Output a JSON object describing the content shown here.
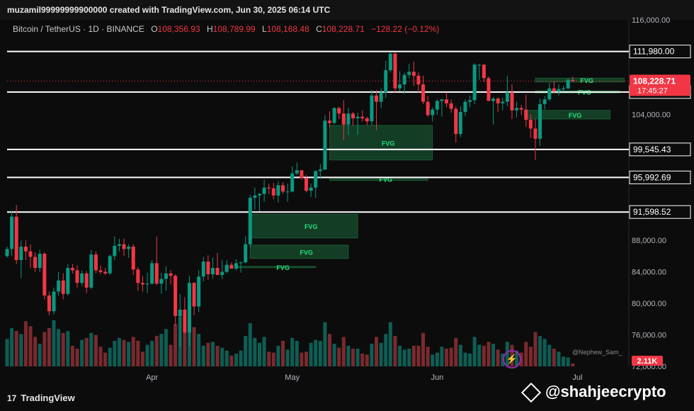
{
  "credit": "muzamil99999999900000 created with TradingView.com, Jun 30, 2025 06:14 UTC",
  "symbol": {
    "name": "Bitcoin / TetherUS · 1D · BINANCE",
    "o_label": "O",
    "o": "108,356.93",
    "h_label": "H",
    "h": "108,789.99",
    "l_label": "L",
    "l": "108,168.48",
    "c_label": "C",
    "c": "108,228.71",
    "change": "−128.22 (−0.12%)"
  },
  "brand": "TradingView",
  "author": "@Nephew_Sam_",
  "watermark": "@shahjeecrypto",
  "colors": {
    "up": "#089981",
    "down": "#f23645",
    "fvg": "#1f7a45",
    "fvg_text": "#26e07a",
    "level": "#ffffff",
    "bg": "#0c0c0c"
  },
  "chart_data": {
    "type": "candlestick",
    "title": "Bitcoin / TetherUS · 1D · BINANCE",
    "y_scale": "linear",
    "ylim": [
      72000,
      116000
    ],
    "y_ticks": [
      "116,000.00",
      "104,000.00",
      "88,000.00",
      "84,000.00",
      "80,000.00",
      "76,000.00",
      "72,000.00"
    ],
    "x_ticks": [
      "Apr",
      "May",
      "Jun",
      "Jul"
    ],
    "x_tick_dates": [
      "2025-04-01",
      "2025-05-01",
      "2025-06-01",
      "2025-07-01"
    ],
    "x_range": [
      "2025-03-01",
      "2025-07-12"
    ],
    "levels": [
      {
        "price": 111980.0,
        "label": "111,980.00"
      },
      {
        "price": 106837.88,
        "label": "106,837.88"
      },
      {
        "price": 99545.43,
        "label": "99,545.43"
      },
      {
        "price": 95992.69,
        "label": "95,992.69"
      },
      {
        "price": 91598.52,
        "label": "91,598.52"
      }
    ],
    "last_price": {
      "price": 108228.71,
      "label": "108,228.71",
      "countdown": "17:45:27"
    },
    "volume_label": "2.11K",
    "fvg_zones": [
      {
        "label": "FVG",
        "start": "2025-06-22",
        "end": "2025-07-11",
        "top": 108600,
        "bottom": 108100
      },
      {
        "label": "FVG",
        "start": "2025-06-22",
        "end": "2025-07-10",
        "top": 107000,
        "bottom": 106700
      },
      {
        "label": "FVG",
        "start": "2025-06-20",
        "end": "2025-07-08",
        "top": 104500,
        "bottom": 103400
      },
      {
        "label": "FVG",
        "start": "2025-05-09",
        "end": "2025-05-31",
        "top": 102600,
        "bottom": 98200
      },
      {
        "label": "FVG",
        "start": "2025-05-09",
        "end": "2025-05-30",
        "top": 96000,
        "bottom": 95600
      },
      {
        "label": "FVG",
        "start": "2025-04-22",
        "end": "2025-05-15",
        "top": 91300,
        "bottom": 88300
      },
      {
        "label": "FVG",
        "start": "2025-04-22",
        "end": "2025-05-13",
        "top": 87400,
        "bottom": 85700
      },
      {
        "label": "FVG",
        "start": "2025-04-19",
        "end": "2025-05-06",
        "top": 84700,
        "bottom": 84600
      }
    ],
    "candles": [
      {
        "d": "2025-03-01",
        "o": 86000,
        "h": 87200,
        "l": 85800,
        "c": 86900
      },
      {
        "d": "2025-03-02",
        "o": 86900,
        "h": 91800,
        "l": 86000,
        "c": 91000
      },
      {
        "d": "2025-03-03",
        "o": 91000,
        "h": 92500,
        "l": 85000,
        "c": 85500
      },
      {
        "d": "2025-03-04",
        "o": 85500,
        "h": 88000,
        "l": 83200,
        "c": 87200
      },
      {
        "d": "2025-03-05",
        "o": 87200,
        "h": 88000,
        "l": 85500,
        "c": 86600
      },
      {
        "d": "2025-03-06",
        "o": 86600,
        "h": 87500,
        "l": 84500,
        "c": 85900
      },
      {
        "d": "2025-03-07",
        "o": 85900,
        "h": 86500,
        "l": 84000,
        "c": 84500
      },
      {
        "d": "2025-03-08",
        "o": 84500,
        "h": 86800,
        "l": 84000,
        "c": 86300
      },
      {
        "d": "2025-03-09",
        "o": 86300,
        "h": 86500,
        "l": 80500,
        "c": 81000
      },
      {
        "d": "2025-03-10",
        "o": 81000,
        "h": 81500,
        "l": 78500,
        "c": 79000
      },
      {
        "d": "2025-03-11",
        "o": 79000,
        "h": 82000,
        "l": 78600,
        "c": 81500
      },
      {
        "d": "2025-03-12",
        "o": 81500,
        "h": 84000,
        "l": 81000,
        "c": 82900
      },
      {
        "d": "2025-03-13",
        "o": 82900,
        "h": 83800,
        "l": 80500,
        "c": 81200
      },
      {
        "d": "2025-03-14",
        "o": 81200,
        "h": 85000,
        "l": 81000,
        "c": 84500
      },
      {
        "d": "2025-03-15",
        "o": 84500,
        "h": 85000,
        "l": 83800,
        "c": 84200
      },
      {
        "d": "2025-03-16",
        "o": 84200,
        "h": 84800,
        "l": 82000,
        "c": 82600
      },
      {
        "d": "2025-03-17",
        "o": 82600,
        "h": 84200,
        "l": 82200,
        "c": 83800
      },
      {
        "d": "2025-03-18",
        "o": 83800,
        "h": 84100,
        "l": 81300,
        "c": 82000
      },
      {
        "d": "2025-03-19",
        "o": 82000,
        "h": 86800,
        "l": 81800,
        "c": 86200
      },
      {
        "d": "2025-03-20",
        "o": 86200,
        "h": 86600,
        "l": 83800,
        "c": 84200
      },
      {
        "d": "2025-03-21",
        "o": 84200,
        "h": 84800,
        "l": 83700,
        "c": 84000
      },
      {
        "d": "2025-03-22",
        "o": 84000,
        "h": 84500,
        "l": 83600,
        "c": 83800
      },
      {
        "d": "2025-03-23",
        "o": 83800,
        "h": 86200,
        "l": 83600,
        "c": 86000
      },
      {
        "d": "2025-03-24",
        "o": 86000,
        "h": 88500,
        "l": 85500,
        "c": 87300
      },
      {
        "d": "2025-03-25",
        "o": 87300,
        "h": 88200,
        "l": 86600,
        "c": 87500
      },
      {
        "d": "2025-03-26",
        "o": 87500,
        "h": 88200,
        "l": 86000,
        "c": 86900
      },
      {
        "d": "2025-03-27",
        "o": 86900,
        "h": 87500,
        "l": 85800,
        "c": 87200
      },
      {
        "d": "2025-03-28",
        "o": 87200,
        "h": 87500,
        "l": 83600,
        "c": 84300
      },
      {
        "d": "2025-03-29",
        "o": 84300,
        "h": 84600,
        "l": 81600,
        "c": 82600
      },
      {
        "d": "2025-03-30",
        "o": 82600,
        "h": 83500,
        "l": 81500,
        "c": 82400
      },
      {
        "d": "2025-03-31",
        "o": 82400,
        "h": 83900,
        "l": 81300,
        "c": 82500
      },
      {
        "d": "2025-04-01",
        "o": 82500,
        "h": 85500,
        "l": 82400,
        "c": 85100
      },
      {
        "d": "2025-04-02",
        "o": 85100,
        "h": 88500,
        "l": 82300,
        "c": 82500
      },
      {
        "d": "2025-04-03",
        "o": 82500,
        "h": 83900,
        "l": 81200,
        "c": 83100
      },
      {
        "d": "2025-04-04",
        "o": 83100,
        "h": 84700,
        "l": 81600,
        "c": 83800
      },
      {
        "d": "2025-04-05",
        "o": 83800,
        "h": 84200,
        "l": 82400,
        "c": 83500
      },
      {
        "d": "2025-04-06",
        "o": 83500,
        "h": 83700,
        "l": 77200,
        "c": 78400
      },
      {
        "d": "2025-04-07",
        "o": 78400,
        "h": 81200,
        "l": 74500,
        "c": 79200
      },
      {
        "d": "2025-04-08",
        "o": 79200,
        "h": 80800,
        "l": 76200,
        "c": 76300
      },
      {
        "d": "2025-04-09",
        "o": 76300,
        "h": 83500,
        "l": 74600,
        "c": 82600
      },
      {
        "d": "2025-04-10",
        "o": 82600,
        "h": 82700,
        "l": 78500,
        "c": 79600
      },
      {
        "d": "2025-04-11",
        "o": 79600,
        "h": 84200,
        "l": 78900,
        "c": 83400
      },
      {
        "d": "2025-04-12",
        "o": 83400,
        "h": 85900,
        "l": 82800,
        "c": 85300
      },
      {
        "d": "2025-04-13",
        "o": 85300,
        "h": 86100,
        "l": 83000,
        "c": 83700
      },
      {
        "d": "2025-04-14",
        "o": 83700,
        "h": 85800,
        "l": 83100,
        "c": 84500
      },
      {
        "d": "2025-04-15",
        "o": 84500,
        "h": 86400,
        "l": 83600,
        "c": 83600
      },
      {
        "d": "2025-04-16",
        "o": 83600,
        "h": 85500,
        "l": 83100,
        "c": 84000
      },
      {
        "d": "2025-04-17",
        "o": 84000,
        "h": 85500,
        "l": 83800,
        "c": 84900
      },
      {
        "d": "2025-04-18",
        "o": 84900,
        "h": 85200,
        "l": 84500,
        "c": 84400
      },
      {
        "d": "2025-04-19",
        "o": 84400,
        "h": 85600,
        "l": 84200,
        "c": 85100
      },
      {
        "d": "2025-04-20",
        "o": 85100,
        "h": 85300,
        "l": 83900,
        "c": 85200
      },
      {
        "d": "2025-04-21",
        "o": 85200,
        "h": 88500,
        "l": 85100,
        "c": 87500
      },
      {
        "d": "2025-04-22",
        "o": 87500,
        "h": 93800,
        "l": 87100,
        "c": 93400
      },
      {
        "d": "2025-04-23",
        "o": 93400,
        "h": 94700,
        "l": 91900,
        "c": 93700
      },
      {
        "d": "2025-04-24",
        "o": 93700,
        "h": 94000,
        "l": 91700,
        "c": 93900
      },
      {
        "d": "2025-04-25",
        "o": 93900,
        "h": 95700,
        "l": 92900,
        "c": 94700
      },
      {
        "d": "2025-04-26",
        "o": 94700,
        "h": 95200,
        "l": 93900,
        "c": 94600
      },
      {
        "d": "2025-04-27",
        "o": 94600,
        "h": 95300,
        "l": 93200,
        "c": 93700
      },
      {
        "d": "2025-04-28",
        "o": 93700,
        "h": 95500,
        "l": 92800,
        "c": 95000
      },
      {
        "d": "2025-04-29",
        "o": 95000,
        "h": 95400,
        "l": 93900,
        "c": 94200
      },
      {
        "d": "2025-04-30",
        "o": 94200,
        "h": 95200,
        "l": 92900,
        "c": 94200
      },
      {
        "d": "2025-05-01",
        "o": 94200,
        "h": 97400,
        "l": 94100,
        "c": 96500
      },
      {
        "d": "2025-05-02",
        "o": 96500,
        "h": 97900,
        "l": 96300,
        "c": 96900
      },
      {
        "d": "2025-05-03",
        "o": 96900,
        "h": 96900,
        "l": 95700,
        "c": 95900
      },
      {
        "d": "2025-05-04",
        "o": 95900,
        "h": 96300,
        "l": 94100,
        "c": 94300
      },
      {
        "d": "2025-05-05",
        "o": 94300,
        "h": 95200,
        "l": 93500,
        "c": 94700
      },
      {
        "d": "2025-05-06",
        "o": 94700,
        "h": 96900,
        "l": 93400,
        "c": 96800
      },
      {
        "d": "2025-05-07",
        "o": 96800,
        "h": 97700,
        "l": 95800,
        "c": 97000
      },
      {
        "d": "2025-05-08",
        "o": 97000,
        "h": 103900,
        "l": 96900,
        "c": 103200
      },
      {
        "d": "2025-05-09",
        "o": 103200,
        "h": 104400,
        "l": 102300,
        "c": 102900
      },
      {
        "d": "2025-05-10",
        "o": 102900,
        "h": 104900,
        "l": 102800,
        "c": 104800
      },
      {
        "d": "2025-05-11",
        "o": 104800,
        "h": 105000,
        "l": 103400,
        "c": 104100
      },
      {
        "d": "2025-05-12",
        "o": 104100,
        "h": 105800,
        "l": 100700,
        "c": 102700
      },
      {
        "d": "2025-05-13",
        "o": 102700,
        "h": 104800,
        "l": 101400,
        "c": 104100
      },
      {
        "d": "2025-05-14",
        "o": 104100,
        "h": 104300,
        "l": 102600,
        "c": 103500
      },
      {
        "d": "2025-05-15",
        "o": 103500,
        "h": 104200,
        "l": 101400,
        "c": 103700
      },
      {
        "d": "2025-05-16",
        "o": 103700,
        "h": 104500,
        "l": 103100,
        "c": 103500
      },
      {
        "d": "2025-05-17",
        "o": 103500,
        "h": 103700,
        "l": 102600,
        "c": 103100
      },
      {
        "d": "2025-05-18",
        "o": 103100,
        "h": 107100,
        "l": 102600,
        "c": 106400
      },
      {
        "d": "2025-05-19",
        "o": 106400,
        "h": 107100,
        "l": 102000,
        "c": 105600
      },
      {
        "d": "2025-05-20",
        "o": 105600,
        "h": 107300,
        "l": 104800,
        "c": 106800
      },
      {
        "d": "2025-05-21",
        "o": 106800,
        "h": 110800,
        "l": 106100,
        "c": 109600
      },
      {
        "d": "2025-05-22",
        "o": 109600,
        "h": 111900,
        "l": 109300,
        "c": 111700
      },
      {
        "d": "2025-05-23",
        "o": 111700,
        "h": 111900,
        "l": 106800,
        "c": 107300
      },
      {
        "d": "2025-05-24",
        "o": 107300,
        "h": 109500,
        "l": 106900,
        "c": 107800
      },
      {
        "d": "2025-05-25",
        "o": 107800,
        "h": 109300,
        "l": 106600,
        "c": 109000
      },
      {
        "d": "2025-05-26",
        "o": 109000,
        "h": 110400,
        "l": 108600,
        "c": 109400
      },
      {
        "d": "2025-05-27",
        "o": 109400,
        "h": 110700,
        "l": 107600,
        "c": 108900
      },
      {
        "d": "2025-05-28",
        "o": 108900,
        "h": 109300,
        "l": 106800,
        "c": 107800
      },
      {
        "d": "2025-05-29",
        "o": 107800,
        "h": 108900,
        "l": 105300,
        "c": 105600
      },
      {
        "d": "2025-05-30",
        "o": 105600,
        "h": 106300,
        "l": 103700,
        "c": 103900
      },
      {
        "d": "2025-05-31",
        "o": 103900,
        "h": 104900,
        "l": 103100,
        "c": 104600
      },
      {
        "d": "2025-06-01",
        "o": 104600,
        "h": 105900,
        "l": 103900,
        "c": 105700
      },
      {
        "d": "2025-06-02",
        "o": 105700,
        "h": 105900,
        "l": 103700,
        "c": 105900
      },
      {
        "d": "2025-06-03",
        "o": 105900,
        "h": 106800,
        "l": 104900,
        "c": 105400
      },
      {
        "d": "2025-06-04",
        "o": 105400,
        "h": 105900,
        "l": 104200,
        "c": 104700
      },
      {
        "d": "2025-06-05",
        "o": 104700,
        "h": 105000,
        "l": 100400,
        "c": 101500
      },
      {
        "d": "2025-06-06",
        "o": 101500,
        "h": 105000,
        "l": 101100,
        "c": 104300
      },
      {
        "d": "2025-06-07",
        "o": 104300,
        "h": 105900,
        "l": 103800,
        "c": 105600
      },
      {
        "d": "2025-06-08",
        "o": 105600,
        "h": 106400,
        "l": 104900,
        "c": 105800
      },
      {
        "d": "2025-06-09",
        "o": 105800,
        "h": 110500,
        "l": 105300,
        "c": 110300
      },
      {
        "d": "2025-06-10",
        "o": 110300,
        "h": 110400,
        "l": 108400,
        "c": 110300
      },
      {
        "d": "2025-06-11",
        "o": 110300,
        "h": 110400,
        "l": 108100,
        "c": 108600
      },
      {
        "d": "2025-06-12",
        "o": 108600,
        "h": 108800,
        "l": 105700,
        "c": 105700
      },
      {
        "d": "2025-06-13",
        "o": 105700,
        "h": 106200,
        "l": 102700,
        "c": 106000
      },
      {
        "d": "2025-06-14",
        "o": 106000,
        "h": 106200,
        "l": 104300,
        "c": 105400
      },
      {
        "d": "2025-06-15",
        "o": 105400,
        "h": 106100,
        "l": 104500,
        "c": 105600
      },
      {
        "d": "2025-06-16",
        "o": 105600,
        "h": 108900,
        "l": 105000,
        "c": 106800
      },
      {
        "d": "2025-06-17",
        "o": 106800,
        "h": 107800,
        "l": 103400,
        "c": 104500
      },
      {
        "d": "2025-06-18",
        "o": 104500,
        "h": 105600,
        "l": 103600,
        "c": 104800
      },
      {
        "d": "2025-06-19",
        "o": 104800,
        "h": 105200,
        "l": 103900,
        "c": 104600
      },
      {
        "d": "2025-06-20",
        "o": 104600,
        "h": 106500,
        "l": 102400,
        "c": 103300
      },
      {
        "d": "2025-06-21",
        "o": 103300,
        "h": 104000,
        "l": 101000,
        "c": 102200
      },
      {
        "d": "2025-06-22",
        "o": 102200,
        "h": 103400,
        "l": 98200,
        "c": 100900
      },
      {
        "d": "2025-06-23",
        "o": 100900,
        "h": 106000,
        "l": 100000,
        "c": 105300
      },
      {
        "d": "2025-06-24",
        "o": 105300,
        "h": 106300,
        "l": 104600,
        "c": 105900
      },
      {
        "d": "2025-06-25",
        "o": 105900,
        "h": 108000,
        "l": 105700,
        "c": 107300
      },
      {
        "d": "2025-06-26",
        "o": 107300,
        "h": 108200,
        "l": 106600,
        "c": 106900
      },
      {
        "d": "2025-06-27",
        "o": 106900,
        "h": 107800,
        "l": 106400,
        "c": 107200
      },
      {
        "d": "2025-06-28",
        "o": 107200,
        "h": 107600,
        "l": 106900,
        "c": 107300
      },
      {
        "d": "2025-06-29",
        "o": 107300,
        "h": 108500,
        "l": 107200,
        "c": 108400
      },
      {
        "d": "2025-06-30",
        "o": 108357,
        "h": 108790,
        "l": 108168,
        "c": 108229
      }
    ],
    "volume": [
      2.8,
      3.9,
      3.6,
      3.3,
      4.6,
      4.1,
      3.0,
      2.3,
      3.5,
      3.9,
      4.7,
      3.8,
      3.4,
      3.6,
      2.1,
      1.8,
      2.7,
      2.9,
      3.4,
      3.2,
      2.0,
      1.4,
      1.9,
      2.6,
      2.9,
      2.7,
      2.5,
      3.0,
      2.6,
      1.5,
      2.2,
      2.6,
      3.1,
      3.3,
      3.8,
      2.2,
      4.3,
      5.1,
      3.5,
      6.4,
      4.0,
      3.3,
      2.1,
      2.4,
      2.5,
      2.1,
      1.9,
      1.6,
      1.1,
      1.3,
      1.6,
      3.1,
      4.4,
      2.9,
      2.4,
      3.0,
      1.5,
      1.4,
      2.1,
      2.6,
      1.7,
      2.9,
      2.6,
      1.4,
      1.5,
      2.4,
      2.7,
      2.6,
      4.5,
      3.3,
      2.3,
      1.9,
      3.0,
      2.1,
      1.8,
      1.8,
      1.3,
      1.2,
      2.3,
      3.0,
      2.4,
      3.3,
      4.5,
      3.1,
      2.1,
      1.7,
      1.8,
      2.1,
      2.1,
      3.4,
      2.0,
      1.2,
      1.4,
      2.0,
      1.8,
      1.9,
      2.9,
      2.2,
      1.4,
      1.3,
      3.0,
      2.2,
      2.1,
      2.5,
      2.3,
      1.7,
      1.3,
      2.5,
      2.2,
      1.6,
      1.4,
      2.5,
      2.0,
      3.5,
      3.1,
      2.8,
      2.2,
      1.8,
      1.5,
      1.0,
      0.9,
      0.3
    ]
  }
}
